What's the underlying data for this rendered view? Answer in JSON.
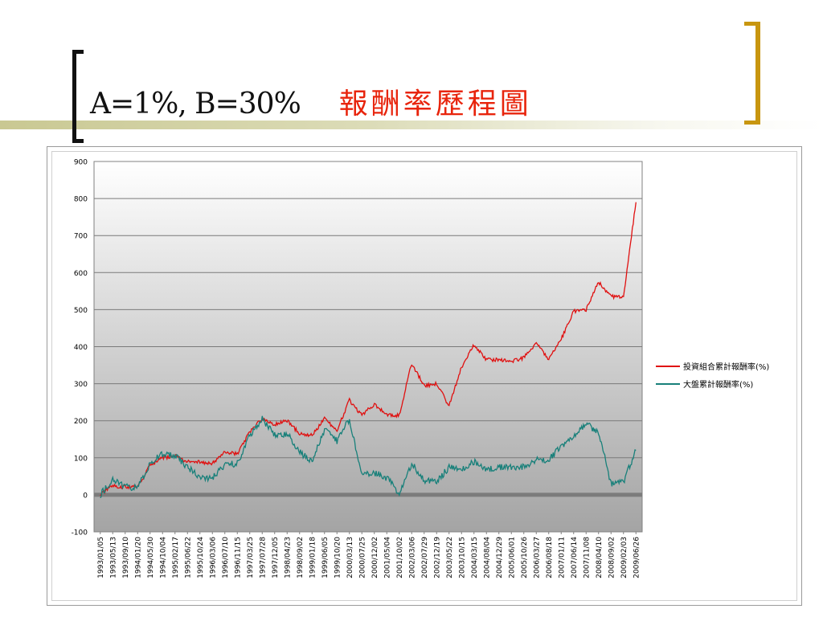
{
  "slide": {
    "title_main": "A=1%,  B=30%",
    "title_chinese": "報酬率歷程圖"
  },
  "colors": {
    "portfolio": "#e01010",
    "market": "#18807a",
    "title_red": "#e8240c",
    "bracket_gold": "#c8960f"
  },
  "chart_data": {
    "type": "line",
    "title": "",
    "xlabel": "",
    "ylabel": "",
    "ylim": [
      -100,
      900
    ],
    "yticks": [
      900,
      800,
      700,
      600,
      500,
      400,
      300,
      200,
      100,
      0,
      -100
    ],
    "grid": true,
    "legend_position": "right",
    "x": [
      "1993/01/05",
      "1993/05/13",
      "1993/09/10",
      "1994/01/20",
      "1994/05/30",
      "1994/10/04",
      "1995/02/17",
      "1995/06/22",
      "1995/10/24",
      "1996/03/06",
      "1996/07/10",
      "1996/11/15",
      "1997/03/25",
      "1997/07/28",
      "1997/12/05",
      "1998/04/23",
      "1998/09/02",
      "1999/01/18",
      "1999/06/05",
      "1999/10/20",
      "2000/03/13",
      "2000/07/25",
      "2000/12/02",
      "2001/05/04",
      "2001/10/02",
      "2002/03/06",
      "2002/07/29",
      "2002/12/19",
      "2003/05/22",
      "2003/10/15",
      "2004/03/15",
      "2004/08/04",
      "2004/12/29",
      "2005/06/01",
      "2005/10/26",
      "2006/03/27",
      "2006/08/18",
      "2007/01/11",
      "2007/06/14",
      "2007/11/08",
      "2008/04/10",
      "2008/09/02",
      "2009/02/03",
      "2009/06/26"
    ],
    "series": [
      {
        "name": "投資組合累計報酬率(%)",
        "values": [
          0,
          25,
          20,
          22,
          80,
          100,
          105,
          90,
          88,
          85,
          115,
          110,
          170,
          205,
          190,
          200,
          165,
          160,
          205,
          175,
          255,
          215,
          245,
          215,
          215,
          355,
          295,
          300,
          240,
          345,
          405,
          365,
          365,
          360,
          370,
          410,
          365,
          420,
          495,
          500,
          575,
          535,
          535,
          790
        ]
      },
      {
        "name": "大盤累計報酬率(%)",
        "values": [
          0,
          40,
          22,
          18,
          85,
          110,
          105,
          75,
          45,
          45,
          80,
          85,
          160,
          205,
          160,
          165,
          115,
          90,
          175,
          145,
          205,
          55,
          60,
          45,
          5,
          85,
          40,
          35,
          75,
          70,
          90,
          70,
          75,
          75,
          75,
          95,
          95,
          130,
          155,
          190,
          170,
          30,
          35,
          120
        ]
      }
    ]
  }
}
